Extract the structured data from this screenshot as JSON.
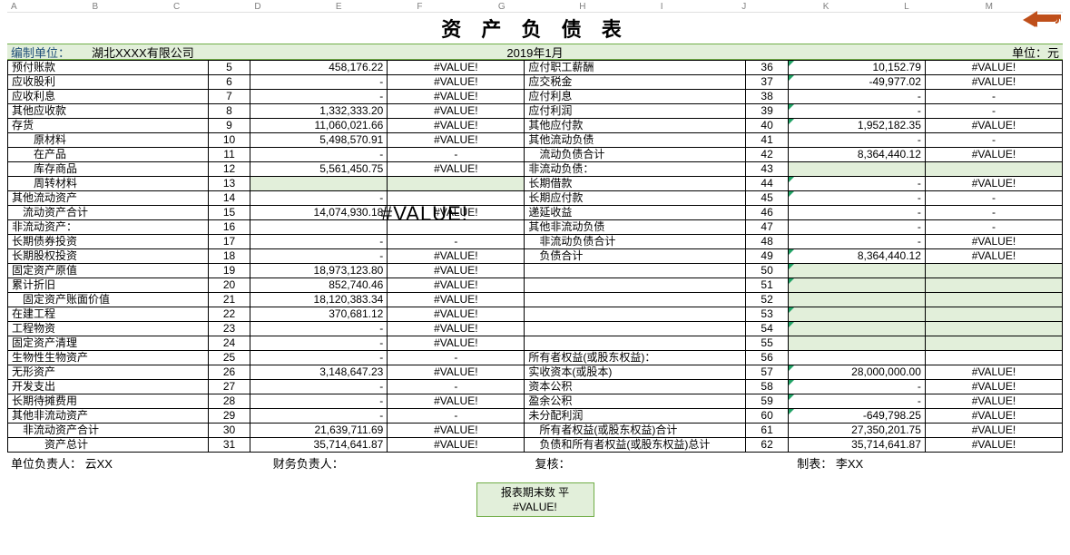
{
  "title": "资 产 负 债 表",
  "header": {
    "org_label": "编制单位：",
    "org_name": "湖北XXXX有限公司",
    "period": "2019年1月",
    "unit_label": "单位：元"
  },
  "col_letters": [
    "A",
    "B",
    "C",
    "D",
    "E",
    "F",
    "G",
    "H",
    "I",
    "J",
    "K",
    "L",
    "M"
  ],
  "big_overlay_text": "#VALUE!",
  "colors": {
    "band_bg": "#e2efda",
    "band_border": "#70ad47",
    "tri_green": "#21a366",
    "arrow": "#bf4f1a"
  },
  "col_widths_pct": [
    19,
    4,
    13,
    13,
    21,
    4,
    13,
    13
  ],
  "rows": [
    {
      "l": "预付账款",
      "ln": "5",
      "la": "458,176.22",
      "lv": "#VALUE!",
      "r": "应付职工薪酬",
      "rn": "36",
      "ra": "10,152.79",
      "rv": "#VALUE!",
      "rtri": true
    },
    {
      "l": "应收股利",
      "ln": "6",
      "la": "-",
      "lv": "#VALUE!",
      "r": "应交税金",
      "rn": "37",
      "ra": "-49,977.02",
      "rv": "#VALUE!",
      "rtri": true
    },
    {
      "l": "应收利息",
      "ln": "7",
      "la": "-",
      "lv": "#VALUE!",
      "r": "应付利息",
      "rn": "38",
      "ra": "-",
      "rv": "-"
    },
    {
      "l": "其他应收款",
      "ln": "8",
      "la": "1,332,333.20",
      "lv": "#VALUE!",
      "r": "应付利润",
      "rn": "39",
      "ra": "-",
      "rv": "-",
      "rtri": true
    },
    {
      "l": "存货",
      "ln": "9",
      "la": "11,060,021.66",
      "lv": "#VALUE!",
      "r": "其他应付款",
      "rn": "40",
      "ra": "1,952,182.35",
      "rv": "#VALUE!",
      "rtri": true
    },
    {
      "l": "　　原材料",
      "ln": "10",
      "la": "5,498,570.91",
      "lv": "#VALUE!",
      "r": "其他流动负债",
      "rn": "41",
      "ra": "-",
      "rv": "-"
    },
    {
      "l": "　　在产品",
      "ln": "11",
      "la": "-",
      "lv": "-",
      "r": "　流动负债合计",
      "rn": "42",
      "ra": "8,364,440.12",
      "rv": "#VALUE!"
    },
    {
      "l": "　　库存商品",
      "ln": "12",
      "la": "5,561,450.75",
      "lv": "#VALUE!",
      "r": "非流动负债：",
      "rn": "43",
      "ra": "",
      "rv": "",
      "rhl": true
    },
    {
      "l": "　　周转材料",
      "ln": "13",
      "la": "",
      "lv": "",
      "lhl": true,
      "r": "长期借款",
      "rn": "44",
      "ra": "-",
      "rv": "#VALUE!",
      "rtri": true
    },
    {
      "l": "其他流动资产",
      "ln": "14",
      "la": "-",
      "lv": "",
      "r": "长期应付款",
      "rn": "45",
      "ra": "-",
      "rv": "-",
      "rtri": true
    },
    {
      "l": "　流动资产合计",
      "ln": "15",
      "la": "14,074,930.18",
      "lv": "#VALUE!",
      "r": "递延收益",
      "rn": "46",
      "ra": "-",
      "rv": "-"
    },
    {
      "l": "非流动资产：",
      "ln": "16",
      "la": "",
      "lv": "",
      "r": "其他非流动负债",
      "rn": "47",
      "ra": "-",
      "rv": "-"
    },
    {
      "l": "长期债券投资",
      "ln": "17",
      "la": "-",
      "lv": "-",
      "r": "　非流动负债合计",
      "rn": "48",
      "ra": "-",
      "rv": "#VALUE!"
    },
    {
      "l": "长期股权投资",
      "ln": "18",
      "la": "-",
      "lv": "#VALUE!",
      "r": "　负债合计",
      "rn": "49",
      "ra": "8,364,440.12",
      "rv": "#VALUE!",
      "rtri": true
    },
    {
      "l": "固定资产原值",
      "ln": "19",
      "la": "18,973,123.80",
      "lv": "#VALUE!",
      "r": "",
      "rn": "50",
      "ra": "",
      "rv": "",
      "rtri": true,
      "rhl": true
    },
    {
      "l": "累计折旧",
      "ln": "20",
      "la": "852,740.46",
      "lv": "#VALUE!",
      "r": "",
      "rn": "51",
      "ra": "",
      "rv": "",
      "rtri": true,
      "rhl": true
    },
    {
      "l": "　固定资产账面价值",
      "ln": "21",
      "la": "18,120,383.34",
      "lv": "#VALUE!",
      "r": "",
      "rn": "52",
      "ra": "",
      "rv": "",
      "rhl": true
    },
    {
      "l": "在建工程",
      "ln": "22",
      "la": "370,681.12",
      "lv": "#VALUE!",
      "r": "",
      "rn": "53",
      "ra": "",
      "rv": "",
      "rtri": true,
      "rhl": true
    },
    {
      "l": "工程物资",
      "ln": "23",
      "la": "-",
      "lv": "#VALUE!",
      "r": "",
      "rn": "54",
      "ra": "",
      "rv": "",
      "rtri": true,
      "rhl": true
    },
    {
      "l": "固定资产清理",
      "ln": "24",
      "la": "-",
      "lv": "#VALUE!",
      "r": "",
      "rn": "55",
      "ra": "",
      "rv": "",
      "rhl": true
    },
    {
      "l": "生物性生物资产",
      "ln": "25",
      "la": "-",
      "lv": "-",
      "r": "所有者权益(或股东权益)：",
      "rn": "56",
      "ra": "",
      "rv": ""
    },
    {
      "l": "无形资产",
      "ln": "26",
      "la": "3,148,647.23",
      "lv": "#VALUE!",
      "r": "实收资本(或股本)",
      "rn": "57",
      "ra": "28,000,000.00",
      "rv": "#VALUE!",
      "rtri": true
    },
    {
      "l": "开发支出",
      "ln": "27",
      "la": "-",
      "lv": "-",
      "r": "资本公积",
      "rn": "58",
      "ra": "-",
      "rv": "#VALUE!",
      "rtri": true
    },
    {
      "l": "长期待摊费用",
      "ln": "28",
      "la": "-",
      "lv": "#VALUE!",
      "r": "盈余公积",
      "rn": "59",
      "ra": "-",
      "rv": "#VALUE!",
      "rtri": true
    },
    {
      "l": "其他非流动资产",
      "ln": "29",
      "la": "-",
      "lv": "-",
      "r": "未分配利润",
      "rn": "60",
      "ra": "-649,798.25",
      "rv": "#VALUE!",
      "rtri": true
    },
    {
      "l": "　非流动资产合计",
      "ln": "30",
      "la": "21,639,711.69",
      "lv": "#VALUE!",
      "r": "　所有者权益(或股东权益)合计",
      "rn": "61",
      "ra": "27,350,201.75",
      "rv": "#VALUE!"
    },
    {
      "l": "　　　资产总计",
      "ln": "31",
      "la": "35,714,641.87",
      "lv": "#VALUE!",
      "r": "　负债和所有者权益(或股东权益)总计",
      "rn": "62",
      "ra": "35,714,641.87",
      "rv": "#VALUE!"
    }
  ],
  "footer": {
    "seg1_label": "单位负责人：",
    "seg1_val": "云XX",
    "seg2_label": "财务负责人：",
    "seg2_val": "",
    "seg3_label": "复核：",
    "seg3_val": "",
    "seg4_label": "制表：",
    "seg4_val": "李XX"
  },
  "bottom_box": {
    "line1": "报表期末数 平",
    "line2": "#VALUE!"
  }
}
